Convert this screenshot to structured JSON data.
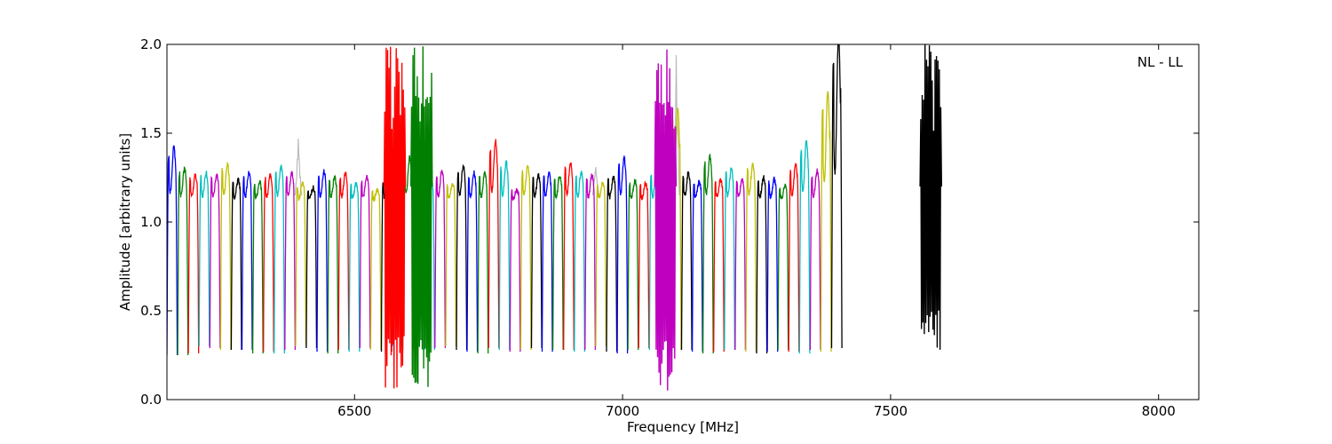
{
  "chart_data": {
    "type": "line",
    "title": "",
    "xlabel": "Frequency [MHz]",
    "ylabel": "Amplitude [arbitrary units]",
    "annotation": "NL - LL",
    "xlim": [
      6150,
      8075
    ],
    "ylim": [
      0.0,
      2.0
    ],
    "xticks": [
      6500,
      7000,
      7500,
      8000
    ],
    "xtick_labels": [
      "6500",
      "7000",
      "7500",
      "8000"
    ],
    "yticks": [
      0.0,
      0.5,
      1.0,
      1.5,
      2.0
    ],
    "ytick_labels": [
      "0.0",
      "0.5",
      "1.0",
      "1.5",
      "2.0"
    ],
    "grid": false,
    "legend": "none",
    "background_series": {
      "color": "#bbbbbb",
      "peaks": [
        {
          "x": 6395,
          "y": 1.47
        },
        {
          "x": 6565,
          "y": 1.8
        },
        {
          "x": 6950,
          "y": 1.31
        },
        {
          "x": 7100,
          "y": 1.94
        }
      ]
    },
    "band_spacing_mhz": 20,
    "band_start_mhz": 6150,
    "band_color_cycle": [
      "#0000ff",
      "#008000",
      "#ff0000",
      "#00bfbf",
      "#bf00bf",
      "#bfbf00",
      "#000000"
    ],
    "band_peaks": [
      1.37,
      1.27,
      1.24,
      1.25,
      1.24,
      1.29,
      1.22,
      1.25,
      1.21,
      1.24,
      1.28,
      1.25,
      1.2,
      1.18,
      1.26,
      1.23,
      1.25,
      1.2,
      1.23,
      1.17,
      1.22,
      1.25,
      1.32,
      1.22,
      1.22,
      1.26,
      1.2,
      1.28,
      1.25,
      1.25,
      1.4,
      1.3,
      1.17,
      1.28,
      1.24,
      1.25,
      1.24,
      1.3,
      1.25,
      1.24,
      1.2,
      1.23,
      1.32,
      1.21,
      1.2,
      1.26,
      1.4,
      1.56,
      1.25,
      1.21,
      1.33,
      1.22,
      1.27,
      1.22,
      1.29,
      1.23,
      1.22,
      1.19,
      1.29,
      1.4,
      1.26,
      1.64,
      1.9
    ],
    "band_troughs": [
      0.25,
      0.25,
      0.26,
      0.3,
      0.29,
      0.28,
      0.28,
      0.28,
      0.26,
      0.27,
      0.26,
      0.28,
      0.3,
      0.29,
      0.27,
      0.26,
      0.28,
      0.27,
      0.29,
      0.28,
      0.27,
      0.3,
      0.28,
      0.29,
      0.28,
      0.29,
      0.3,
      0.28,
      0.27,
      0.26,
      0.29,
      0.28,
      0.27,
      0.28,
      0.29,
      0.27,
      0.28,
      0.28,
      0.27,
      0.28,
      0.3,
      0.27,
      0.26,
      0.28,
      0.29,
      0.28,
      0.26,
      0.28,
      0.28,
      0.27,
      0.26,
      0.27,
      0.28,
      0.28,
      0.27,
      0.26,
      0.27,
      0.28,
      0.27,
      0.26,
      0.28,
      0.27,
      0.29
    ],
    "rfi_spikes": [
      {
        "color": "#ff0000",
        "x_start": 6555,
        "x_end": 6595,
        "min": 0.06,
        "max": 2.0
      },
      {
        "color": "#008000",
        "x_start": 6605,
        "x_end": 6645,
        "min": 0.05,
        "max": 2.0
      },
      {
        "color": "#bf00bf",
        "x_start": 7060,
        "x_end": 7100,
        "min": 0.05,
        "max": 2.0
      },
      {
        "color": "#000000",
        "x_start": 7555,
        "x_end": 7595,
        "min": 0.27,
        "max": 2.0
      }
    ]
  }
}
